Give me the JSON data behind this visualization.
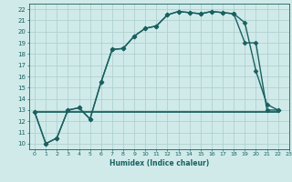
{
  "xlabel": "Humidex (Indice chaleur)",
  "xlim": [
    -0.5,
    23
  ],
  "ylim": [
    9.5,
    22.5
  ],
  "yticks": [
    10,
    11,
    12,
    13,
    14,
    15,
    16,
    17,
    18,
    19,
    20,
    21,
    22
  ],
  "xticks": [
    0,
    1,
    2,
    3,
    4,
    5,
    6,
    7,
    8,
    9,
    10,
    11,
    12,
    13,
    14,
    15,
    16,
    17,
    18,
    19,
    20,
    21,
    22,
    23
  ],
  "xtick_labels": [
    "0",
    "1",
    "2",
    "3",
    "4",
    "5",
    "6",
    "7",
    "8",
    "9",
    "10",
    "11",
    "12",
    "13",
    "14",
    "15",
    "16",
    "17",
    "18",
    "19",
    "20",
    "21",
    "22",
    "23"
  ],
  "background_color": "#d0eaea",
  "grid_color": "#b0d0d0",
  "line_color": "#1a6060",
  "series": [
    {
      "x": [
        0,
        1,
        2,
        3,
        4,
        5,
        6,
        7,
        8,
        9,
        10,
        11,
        12,
        13,
        14,
        15,
        16,
        17,
        18,
        19,
        20,
        21,
        22
      ],
      "y": [
        12.8,
        10.0,
        10.5,
        13.0,
        13.2,
        12.2,
        15.5,
        18.4,
        18.5,
        19.6,
        20.3,
        20.5,
        21.5,
        21.8,
        21.7,
        21.6,
        21.8,
        21.7,
        21.6,
        20.8,
        16.5,
        13.5,
        13.0
      ],
      "marker": "D",
      "markersize": 2.5,
      "linewidth": 1.0
    },
    {
      "x": [
        0,
        1,
        2,
        3,
        4,
        5,
        6,
        7,
        8,
        9,
        10,
        11,
        12,
        13,
        14,
        15,
        16,
        17,
        18,
        19,
        20,
        21,
        22
      ],
      "y": [
        12.8,
        10.0,
        10.5,
        13.0,
        13.2,
        12.2,
        15.5,
        18.4,
        18.5,
        19.6,
        20.3,
        20.5,
        21.5,
        21.8,
        21.7,
        21.6,
        21.8,
        21.7,
        21.6,
        19.0,
        19.0,
        13.0,
        13.0
      ],
      "marker": "D",
      "markersize": 2.5,
      "linewidth": 1.0
    },
    {
      "x": [
        0,
        22
      ],
      "y": [
        12.8,
        12.8
      ],
      "marker": null,
      "markersize": 0,
      "linewidth": 1.3
    }
  ]
}
